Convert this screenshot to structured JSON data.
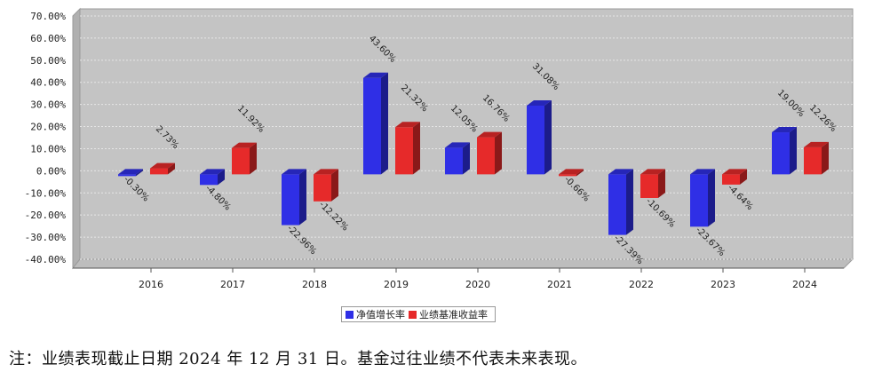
{
  "chart_data": {
    "type": "bar",
    "categories": [
      "2016",
      "2017",
      "2018",
      "2019",
      "2020",
      "2021",
      "2022",
      "2023",
      "2024"
    ],
    "series": [
      {
        "name": "净值增长率",
        "color": "#2f2fe6",
        "values": [
          -0.3,
          -4.8,
          -22.96,
          43.6,
          12.05,
          31.08,
          -27.39,
          -23.67,
          19.0
        ],
        "labels": [
          "-0.30%",
          "-4.80%",
          "-22.96%",
          "43.60%",
          "12.05%",
          "31.08%",
          "-27.39%",
          "-23.67%",
          "19.00%"
        ]
      },
      {
        "name": "业绩基准收益率",
        "color": "#e62a2a",
        "values": [
          2.73,
          11.92,
          -12.22,
          21.32,
          16.76,
          -0.66,
          -10.69,
          -4.64,
          12.26
        ],
        "labels": [
          "2.73%",
          "11.92%",
          "-12.22%",
          "21.32%",
          "16.76%",
          "-0.66%",
          "-10.69%",
          "-4.64%",
          "12.26%"
        ]
      }
    ],
    "yticks": [
      "70.00%",
      "60.00%",
      "50.00%",
      "40.00%",
      "30.00%",
      "20.00%",
      "10.00%",
      "0.00%",
      "-10.00%",
      "-20.00%",
      "-30.00%",
      "-40.00%"
    ],
    "ylim": [
      -40,
      70
    ],
    "grid": true,
    "legend_position": "bottom-center"
  },
  "note": "注：业绩表现截止日期 2024 年 12 月 31 日。基金过往业绩不代表未来表现。"
}
